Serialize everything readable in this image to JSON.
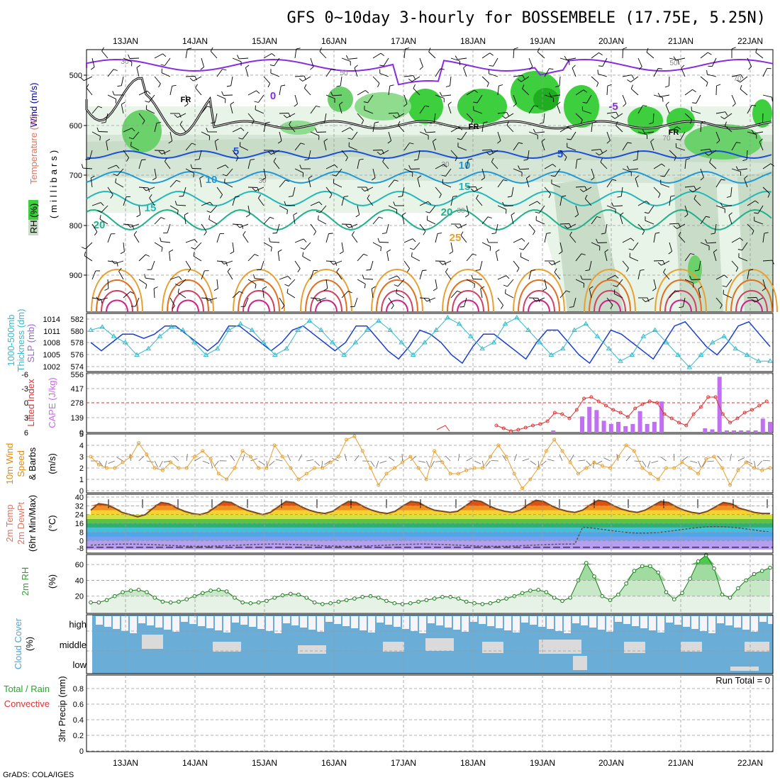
{
  "title": "GFS 0~10day 3-hourly for BOSSEMBELE (17.75E, 5.25N)",
  "credit": "GrADS: COLA/IGES",
  "dates": [
    "13JAN",
    "14JAN",
    "15JAN",
    "16JAN",
    "17JAN",
    "18JAN",
    "19JAN",
    "20JAN",
    "21JAN",
    "22JAN"
  ],
  "colors": {
    "temp_text": "#e8705a",
    "wind_text": "#0000aa",
    "rh_text": "#22aa22",
    "slp_text": "#9966cc",
    "thick_text": "#33bbcc",
    "li_text": "#dd3333",
    "cape_text": "#cc66ee",
    "wind10_text": "#ee8800",
    "cloud_text": "#4da6d9",
    "precip_green": "#22aa22",
    "precip_red": "#dd3333"
  },
  "panels": {
    "upper": {
      "label_wind": "Wind (m/s)",
      "label_temp": "Temperature (°C)",
      "label_rh": "RH (%)",
      "label_axis": "(millibars)",
      "yticks": [
        "500",
        "600",
        "700",
        "800",
        "900"
      ],
      "isotherm_labels": [
        "0",
        "-5",
        "5",
        "10",
        "15",
        "20",
        "25",
        "FR",
        "FR",
        "FR",
        "5",
        "10",
        "15",
        "20"
      ],
      "rh_labels": [
        "30",
        "30",
        "50",
        "50",
        "30",
        "30",
        "70",
        "70"
      ]
    },
    "slp": {
      "label_thick": "1000-500mb",
      "label_thick2": "Thickness (dm)",
      "label_slp": "SLP (mb)",
      "left_ticks": [
        "582",
        "580",
        "578",
        "576",
        "574"
      ],
      "right_ticks": [
        "1014",
        "1011",
        "1008",
        "1005",
        "1002"
      ]
    },
    "cape": {
      "label_li": "Lifted Index",
      "label_cape": "CAPE (J/kg)",
      "left_ticks": [
        "-6",
        "-3",
        "0",
        "3",
        "6"
      ],
      "right_ticks": [
        "556",
        "417",
        "278",
        "139",
        "0"
      ]
    },
    "wind10": {
      "label1": "10m Wind",
      "label2": "Speed",
      "label3": "& Barbs",
      "label_unit": "(m/s)",
      "yticks": [
        "5",
        "4",
        "3",
        "2",
        "1",
        "0"
      ]
    },
    "temp2m": {
      "label1": "2m Temp",
      "label2": "2m DewPt",
      "label3": "(6hr Min/Max)",
      "label_unit": "(°C)",
      "yticks": [
        "40",
        "32",
        "24",
        "16",
        "8",
        "0"
      ],
      "bottom_tick": "-8"
    },
    "rh2m": {
      "label": "2m RH",
      "label_unit": "(%)",
      "yticks": [
        "60",
        "40",
        "20"
      ]
    },
    "cloud": {
      "label": "Cloud Cover",
      "label_unit": "(%)",
      "levels": [
        "high",
        "middle",
        "low"
      ]
    },
    "precip": {
      "label1": "Total / Rain",
      "label2": "Convective",
      "label_axis": "3hr Precip (mm)",
      "yticks": [
        "0.8",
        "0.6",
        "0.4",
        "0.2",
        "0"
      ],
      "run_total": "Run Total = 0"
    }
  },
  "chart_data": [
    {
      "type": "line",
      "name": "2m Temp",
      "x_start": "13JAN 00Z-ish",
      "step_hours": 3,
      "values": [
        28,
        34,
        33,
        30,
        26,
        24,
        22,
        24,
        30,
        35,
        34,
        30,
        27,
        25,
        24,
        26,
        31,
        36,
        35,
        31,
        28,
        26,
        24,
        26,
        31,
        36,
        35,
        31,
        28,
        26,
        25,
        27,
        32,
        36,
        35,
        31,
        28,
        26,
        25,
        27,
        32,
        36,
        35,
        31,
        28,
        27,
        26,
        27,
        32,
        37,
        36,
        32,
        29,
        27,
        26,
        28,
        33,
        37,
        36,
        32,
        29,
        27,
        26,
        28,
        33,
        37,
        36,
        32,
        29,
        27,
        26,
        28,
        32,
        36,
        35,
        31,
        28,
        26,
        25,
        27,
        31,
        35,
        34,
        30,
        28,
        26,
        25,
        25
      ],
      "ylim": [
        -8,
        40
      ]
    },
    {
      "type": "line",
      "name": "2m RH",
      "values": [
        12,
        12,
        15,
        20,
        25,
        27,
        28,
        25,
        18,
        13,
        12,
        13,
        16,
        20,
        24,
        27,
        28,
        26,
        18,
        12,
        11,
        12,
        14,
        18,
        21,
        23,
        22,
        18,
        12,
        10,
        11,
        13,
        15,
        17,
        19,
        20,
        18,
        14,
        11,
        10,
        11,
        13,
        15,
        17,
        19,
        19,
        17,
        13,
        11,
        10,
        11,
        14,
        17,
        20,
        24,
        27,
        28,
        25,
        18,
        14,
        18,
        40,
        62,
        45,
        20,
        15,
        22,
        36,
        52,
        58,
        58,
        50,
        25,
        16,
        24,
        42,
        64,
        72,
        55,
        22,
        18,
        30,
        40,
        48,
        52,
        56
      ],
      "ylim": [
        0,
        70
      ]
    },
    {
      "type": "line",
      "name": "10m Wind Speed",
      "values": [
        3,
        2.3,
        2,
        2,
        2.5,
        3,
        4.2,
        3.2,
        2,
        1.8,
        2.5,
        2,
        2,
        3,
        3.5,
        2.8,
        1.5,
        1,
        2,
        3.5,
        3,
        2,
        2,
        4,
        3,
        2,
        1,
        1.5,
        2,
        2,
        2.5,
        3,
        4.5,
        4.8,
        3.5,
        2,
        0.5,
        1.5,
        2,
        2.5,
        3,
        2,
        1,
        3.5,
        2.5,
        1.5,
        1.5,
        1.8,
        2,
        2,
        3,
        4,
        3,
        1.5,
        0.2,
        1,
        2,
        3.5,
        4.5,
        3.5,
        2.5,
        1.5,
        2,
        2.5,
        2.2,
        2,
        3,
        4,
        3.5,
        2,
        1.5,
        1,
        2,
        2,
        2.5,
        2,
        1.5,
        2.8,
        3,
        2,
        0.5,
        1.8,
        2.5,
        2,
        1.8,
        2
      ],
      "ylim": [
        0,
        5
      ]
    },
    {
      "type": "bar",
      "name": "CAPE",
      "values": [
        0,
        0,
        0,
        0,
        0,
        0,
        0,
        0,
        0,
        0,
        0,
        0,
        0,
        0,
        0,
        0,
        0,
        0,
        0,
        0,
        0,
        0,
        0,
        0,
        0,
        0,
        0,
        0,
        0,
        0,
        0,
        0,
        0,
        0,
        0,
        0,
        0,
        0,
        0,
        0,
        0,
        0,
        0,
        0,
        0,
        0,
        0,
        0,
        0,
        0,
        0,
        0,
        0,
        0,
        0,
        0,
        0,
        0,
        0,
        0,
        0,
        0,
        0,
        0,
        20,
        0,
        0,
        0,
        150,
        240,
        210,
        110,
        80,
        100,
        60,
        80,
        200,
        80,
        100,
        290,
        0,
        0,
        0,
        0,
        0,
        40,
        30,
        520,
        20,
        20,
        20,
        20,
        20,
        130,
        100
      ],
      "ylim": [
        0,
        556
      ]
    },
    {
      "type": "line",
      "name": "SLP",
      "values": [
        1008,
        1006,
        1008,
        1010,
        1010,
        1009,
        1010,
        1012,
        1012,
        1010,
        1008,
        1006,
        1008,
        1012,
        1012,
        1010,
        1008,
        1006,
        1008,
        1011,
        1012,
        1010,
        1008,
        1006,
        1008,
        1012,
        1012,
        1009,
        1006,
        1004,
        1007,
        1011,
        1010,
        1008,
        1005,
        1003,
        1007,
        1010,
        1010,
        1008,
        1006,
        1004,
        1008,
        1011,
        1011,
        1008,
        1005,
        1003,
        1007,
        1011,
        1010,
        1008,
        1006,
        1004,
        1008,
        1012,
        1013,
        1010,
        1007,
        1005,
        1008,
        1012,
        1013,
        1010,
        1007
      ],
      "ylim": [
        1002,
        1014
      ]
    },
    {
      "type": "line",
      "name": "Thickness",
      "values": [
        580,
        580.5,
        579,
        578,
        576,
        577,
        579,
        580.5,
        580,
        578,
        576,
        577,
        580,
        581,
        580,
        578,
        576,
        577,
        580,
        581.5,
        580,
        578,
        576,
        578,
        580,
        581.5,
        580,
        578,
        576,
        578,
        580,
        582,
        581,
        579,
        577,
        578,
        581,
        582,
        580,
        578,
        576,
        577,
        580,
        581,
        579,
        577,
        575,
        576,
        579,
        580,
        578,
        576,
        574,
        576,
        578,
        579,
        577,
        576,
        575,
        575
      ],
      "ylim": [
        574,
        582
      ]
    }
  ]
}
